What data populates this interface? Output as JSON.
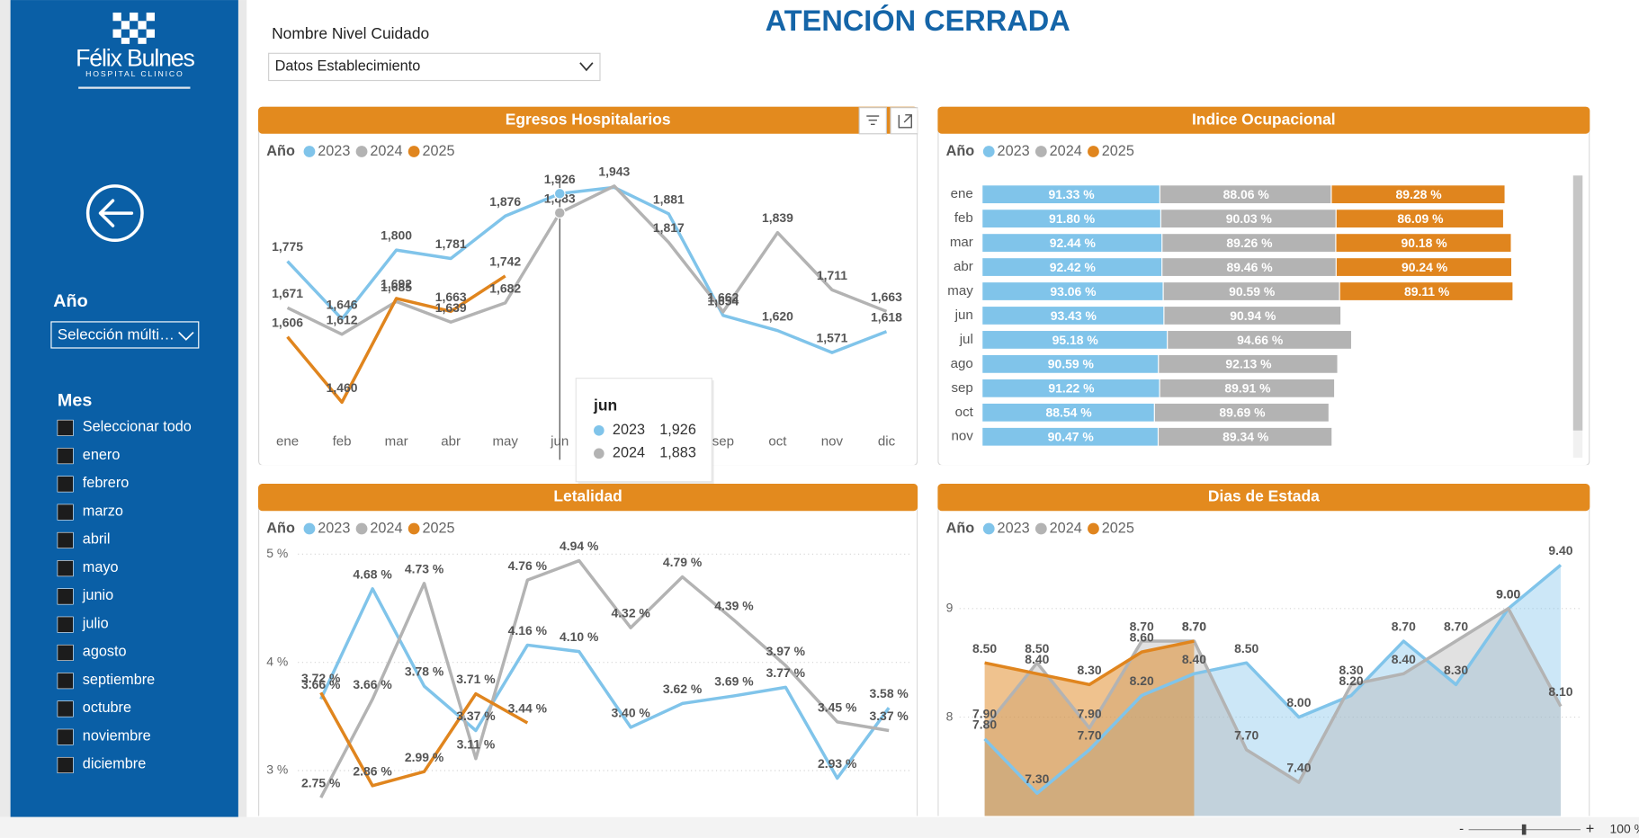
{
  "header": {
    "title": "ATENCIÓN CERRADA",
    "filter_label": "Nombre Nivel Cuidado",
    "filter_value": "Datos Establecimiento"
  },
  "sidebar": {
    "logo": {
      "name": "Félix Bulnes",
      "subtitle": "HOSPITAL CLINICO"
    },
    "year_filter": {
      "label": "Año",
      "value": "Selección múlti…"
    },
    "month_filter": {
      "label": "Mes",
      "options": [
        "Seleccionar todo",
        "enero",
        "febrero",
        "marzo",
        "abril",
        "mayo",
        "junio",
        "julio",
        "agosto",
        "septiembre",
        "octubre",
        "noviembre",
        "diciembre"
      ]
    }
  },
  "chart_data": [
    {
      "type": "line",
      "title": "Egresos Hospitalarios",
      "legend_title": "Año",
      "categories": [
        "ene",
        "feb",
        "mar",
        "abr",
        "may",
        "jun",
        "jul",
        "ago",
        "sep",
        "oct",
        "nov",
        "dic"
      ],
      "series": [
        {
          "name": "2023",
          "color": "#80c4ea",
          "values": [
            1775,
            1646,
            1800,
            1781,
            1876,
            1926,
            1940,
            1881,
            1654,
            1620,
            1571,
            1618
          ],
          "value_labels": [
            "1,775",
            "1,646",
            "1,800",
            "1,781",
            "1,876",
            "1,926",
            null,
            "1,881",
            "1,654",
            "1,620",
            "1,571",
            "1,618"
          ]
        },
        {
          "name": "2024",
          "color": "#b3b3b3",
          "values": [
            1671,
            1612,
            1685,
            1639,
            1682,
            1883,
            1943,
            1817,
            1662,
            1839,
            1711,
            1663
          ],
          "value_labels": [
            "1,671",
            "1,612",
            "1,685",
            "1,639",
            "1,682",
            "1,883",
            "1,943",
            "1,817",
            "1,662",
            "1,839",
            "1,711",
            "1,663"
          ]
        },
        {
          "name": "2025",
          "color": "#e0851e",
          "values": [
            1606,
            1460,
            1692,
            1663,
            1742,
            null,
            null,
            null,
            null,
            null,
            null,
            null
          ],
          "value_labels": [
            "1,606",
            "1,460",
            "1,692",
            "1,663",
            "1,742",
            null,
            null,
            null,
            null,
            null,
            null,
            null
          ]
        }
      ]
    },
    {
      "type": "bar",
      "orientation": "horizontal",
      "stacked": true,
      "title": "Indice Ocupacional",
      "legend_title": "Año",
      "categories": [
        "ene",
        "feb",
        "mar",
        "abr",
        "may",
        "jun",
        "jul",
        "ago",
        "sep",
        "oct",
        "nov"
      ],
      "series": [
        {
          "name": "2023",
          "color": "#80c4ea",
          "values": [
            91.33,
            91.8,
            92.44,
            92.42,
            93.06,
            93.43,
            95.18,
            90.59,
            91.22,
            88.54,
            90.47
          ],
          "value_labels": [
            "91.33 %",
            "91.80 %",
            "92.44 %",
            "92.42 %",
            "93.06 %",
            "93.43 %",
            "95.18 %",
            "90.59 %",
            "91.22 %",
            "88.54 %",
            "90.47 %"
          ]
        },
        {
          "name": "2024",
          "color": "#b3b3b3",
          "values": [
            88.06,
            90.03,
            89.26,
            89.46,
            90.59,
            90.94,
            94.66,
            92.13,
            89.91,
            89.69,
            89.34
          ],
          "value_labels": [
            "88.06 %",
            "90.03 %",
            "89.26 %",
            "89.46 %",
            "90.59 %",
            "90.94 %",
            "94.66 %",
            "92.13 %",
            "89.91 %",
            "89.69 %",
            "89.34 %"
          ]
        },
        {
          "name": "2025",
          "color": "#e0851e",
          "values": [
            89.28,
            86.09,
            90.18,
            90.24,
            89.11,
            null,
            null,
            null,
            null,
            null,
            null
          ],
          "value_labels": [
            "89.28 %",
            "86.09 %",
            "90.18 %",
            "90.24 %",
            "89.11 %",
            null,
            null,
            null,
            null,
            null,
            null
          ]
        }
      ]
    },
    {
      "type": "line",
      "title": "Letalidad",
      "legend_title": "Año",
      "ylim": [
        2.58,
        5.1
      ],
      "yticks": [
        {
          "value": 3,
          "label": "3 %"
        },
        {
          "value": 4,
          "label": "4 %"
        },
        {
          "value": 5,
          "label": "5 %"
        }
      ],
      "grid": true,
      "series": [
        {
          "name": "2023",
          "color": "#80c4ea",
          "values": [
            3.66,
            4.68,
            3.78,
            3.37,
            4.16,
            4.1,
            3.4,
            3.62,
            3.69,
            3.77,
            2.93,
            3.58
          ],
          "value_labels": [
            "3.66 %",
            "4.68 %",
            "3.78 %",
            "3.37 %",
            "4.16 %",
            "4.10 %",
            "3.40 %",
            "3.62 %",
            "3.69 %",
            "3.77 %",
            "2.93 %",
            "3.58 %"
          ]
        },
        {
          "name": "2024",
          "color": "#b3b3b3",
          "values": [
            2.75,
            3.66,
            4.73,
            3.11,
            4.76,
            4.94,
            4.32,
            4.79,
            4.39,
            3.97,
            3.45,
            3.37
          ],
          "value_labels": [
            "2.75 %",
            "3.66 %",
            "4.73 %",
            "3.11 %",
            "4.76 %",
            "4.94 %",
            "4.32 %",
            "4.79 %",
            "4.39 %",
            "3.97 %",
            "3.45 %",
            "3.37 %"
          ]
        },
        {
          "name": "2025",
          "color": "#e0851e",
          "values": [
            3.72,
            2.86,
            2.99,
            3.71,
            3.44,
            null,
            null,
            null,
            null,
            null,
            null,
            null
          ],
          "value_labels": [
            "3.72 %",
            "2.86 %",
            "2.99 %",
            "3.71 %",
            "3.44 %",
            null,
            null,
            null,
            null,
            null,
            null,
            null
          ]
        }
      ]
    },
    {
      "type": "area",
      "title": "Dias de Estada",
      "legend_title": "Año",
      "ylim": [
        7.09,
        9.6
      ],
      "yticks": [
        8,
        9
      ],
      "grid": true,
      "series": [
        {
          "name": "2023",
          "color": "#80c4ea",
          "values": [
            7.8,
            7.3,
            7.7,
            8.2,
            8.4,
            8.5,
            8.0,
            8.2,
            8.7,
            8.3,
            9.0,
            9.4
          ],
          "value_labels": [
            "7.80",
            "7.30",
            "7.70",
            "8.20",
            "8.40",
            "8.50",
            "8.00",
            "8.20",
            "8.70",
            "8.30",
            "9.00",
            "9.40"
          ]
        },
        {
          "name": "2024",
          "color": "#b3b3b3",
          "values": [
            7.9,
            8.5,
            7.9,
            8.7,
            8.7,
            7.7,
            7.4,
            8.3,
            8.4,
            8.7,
            9.0,
            8.1
          ],
          "value_labels": [
            "7.90",
            "8.50",
            "7.90",
            "8.70",
            "8.70",
            "7.70",
            "7.40",
            "8.30",
            "8.40",
            "8.70",
            "9.00",
            "8.10"
          ]
        },
        {
          "name": "2025",
          "color": "#e0851e",
          "values": [
            8.5,
            8.4,
            8.3,
            8.6,
            8.7,
            null,
            null,
            null,
            null,
            null,
            null,
            null
          ],
          "value_labels": [
            "8.50",
            "8.40",
            "8.30",
            "8.60",
            "8.70",
            null,
            null,
            null,
            null,
            null,
            null,
            null
          ]
        }
      ]
    }
  ],
  "tooltip": {
    "title": "jun",
    "rows": [
      {
        "name": "2023",
        "value": "1,926"
      },
      {
        "name": "2024",
        "value": "1,883"
      }
    ]
  },
  "status_bar": {
    "zoom": "100 %"
  }
}
